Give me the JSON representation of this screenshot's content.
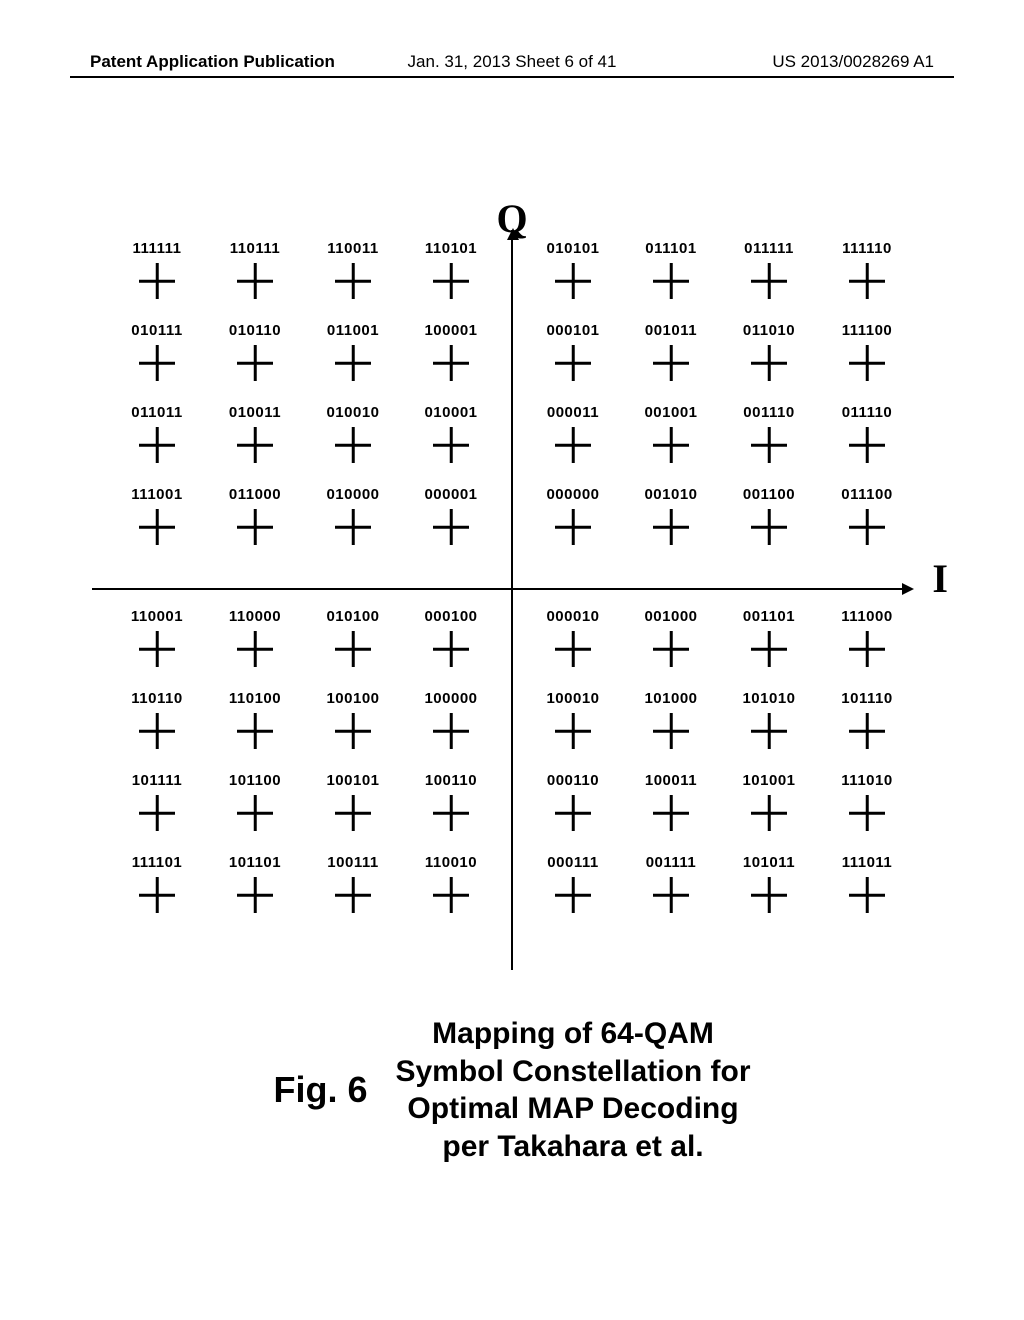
{
  "page": {
    "header_left": "Patent Application Publication",
    "header_center": "Jan. 31, 2013  Sheet 6 of 41",
    "header_right": "US 2013/0028269 A1"
  },
  "figure": {
    "q_label": "Q",
    "i_label": "I",
    "fig_label": "Fig. 6",
    "caption_line1": "Mapping of 64-QAM",
    "caption_line2": "Symbol Constellation for",
    "caption_line3": "Optimal MAP Decoding",
    "caption_line4": "per Takahara et al.",
    "title_fontsize": 30,
    "label_fontsize": 40,
    "code_fontsize": 15,
    "code_fontweight": "bold",
    "plus_stroke_width": 2.5,
    "plus_size": 36,
    "axis_color": "#000000",
    "background_color": "#ffffff",
    "grid_cols": 8,
    "grid_rows": 8,
    "col_gap_after_index": 3,
    "row_gap_after_index": 3,
    "codes": [
      [
        "111111",
        "110111",
        "110011",
        "110101",
        "010101",
        "011101",
        "011111",
        "111110"
      ],
      [
        "010111",
        "010110",
        "011001",
        "100001",
        "000101",
        "001011",
        "011010",
        "111100"
      ],
      [
        "011011",
        "010011",
        "010010",
        "010001",
        "000011",
        "001001",
        "001110",
        "011110"
      ],
      [
        "111001",
        "011000",
        "010000",
        "000001",
        "000000",
        "001010",
        "001100",
        "011100"
      ],
      [
        "110001",
        "110000",
        "010100",
        "000100",
        "000010",
        "001000",
        "001101",
        "111000"
      ],
      [
        "110110",
        "110100",
        "100100",
        "100000",
        "100010",
        "101000",
        "101010",
        "101110"
      ],
      [
        "101111",
        "101100",
        "100101",
        "100110",
        "000110",
        "100011",
        "101001",
        "111010"
      ],
      [
        "111101",
        "101101",
        "100111",
        "110010",
        "000111",
        "001111",
        "101011",
        "111011"
      ]
    ]
  }
}
